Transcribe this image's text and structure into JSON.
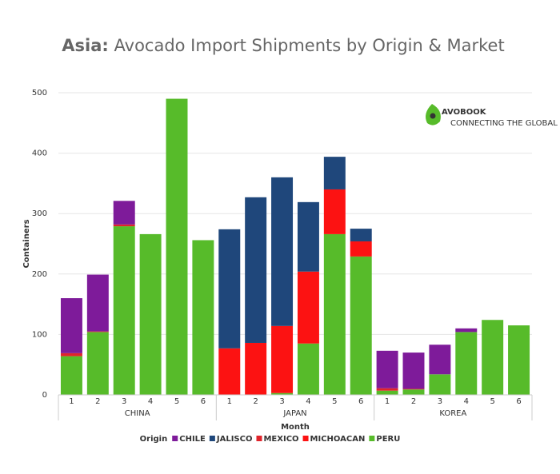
{
  "chart_data": {
    "type": "stacked-bar",
    "title_lead": "Asia:",
    "title": "Avocado Import Shipments by Origin & Market",
    "y_label": "Containers",
    "x_label": "Month",
    "legend_title": "Origin",
    "logo": {
      "name": "AVOBOOK",
      "tagline": "CONNECTING THE GLOBAL AVOCADO MARKET"
    },
    "groups": [
      "CHINA",
      "JAPAN",
      "KOREA"
    ],
    "categories": [
      "1",
      "2",
      "3",
      "4",
      "5",
      "6",
      "1",
      "2",
      "3",
      "4",
      "5",
      "6",
      "1",
      "2",
      "3",
      "4",
      "5",
      "6"
    ],
    "series": [
      {
        "name": "PERU",
        "color": "#57bb2a",
        "values": [
          64,
          104,
          279,
          266,
          490,
          256,
          0,
          0,
          3,
          85,
          266,
          229,
          7,
          9,
          34,
          104,
          124,
          115
        ]
      },
      {
        "name": "MEXICO",
        "color": "#e0242b",
        "values": [
          5,
          1,
          3,
          0,
          0,
          0,
          0,
          0,
          0,
          0,
          0,
          0,
          4,
          1,
          0,
          0,
          0,
          0
        ]
      },
      {
        "name": "MICHOACAN",
        "color": "#fc1212",
        "values": [
          0,
          0,
          0,
          0,
          0,
          0,
          77,
          86,
          111,
          119,
          74,
          25,
          0,
          0,
          0,
          0,
          0,
          0
        ]
      },
      {
        "name": "JALISCO",
        "color": "#1f477b",
        "values": [
          0,
          0,
          0,
          0,
          0,
          0,
          197,
          241,
          246,
          115,
          54,
          21,
          0,
          0,
          0,
          0,
          0,
          0
        ]
      },
      {
        "name": "CHILE",
        "color": "#7e1b9a",
        "values": [
          91,
          94,
          39,
          0,
          0,
          0,
          0,
          0,
          0,
          0,
          0,
          0,
          62,
          60,
          49,
          6,
          0,
          0
        ]
      }
    ],
    "legend_order": [
      4,
      3,
      1,
      2,
      0
    ],
    "ylim": [
      0,
      500
    ],
    "yticks": [
      0,
      100,
      200,
      300,
      400,
      500
    ],
    "grid": true
  }
}
